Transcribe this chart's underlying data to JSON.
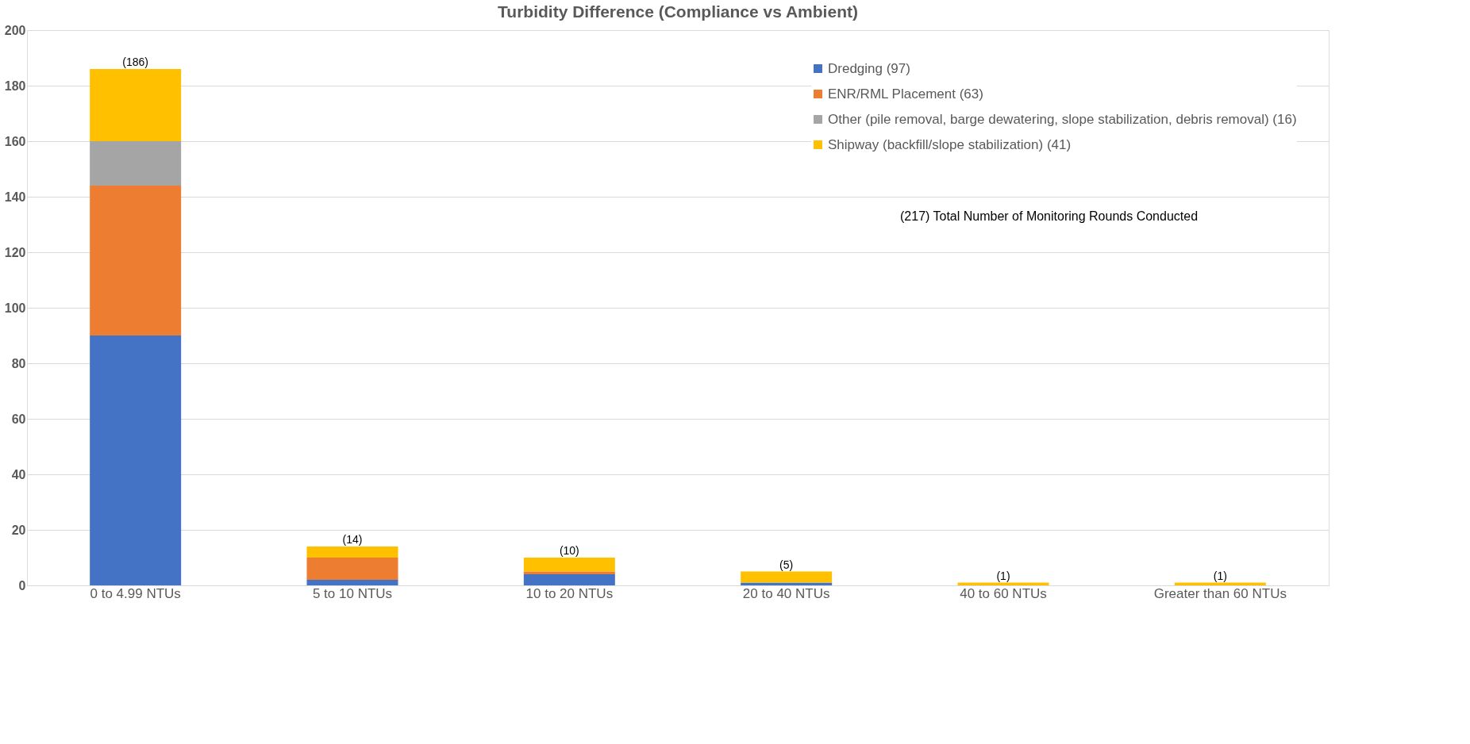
{
  "chart_data": {
    "type": "bar",
    "title": "Turbidity Difference (Compliance vs Ambient)",
    "categories": [
      "0 to 4.99 NTUs",
      "5 to 10 NTUs",
      "10 to 20 NTUs",
      "20 to 40 NTUs",
      "40 to 60 NTUs",
      "Greater than 60 NTUs"
    ],
    "series": [
      {
        "name": "Dredging (97)",
        "color": "#4472c4",
        "values": [
          90,
          2,
          4,
          1,
          0,
          0
        ]
      },
      {
        "name": "ENR/RML Placement (63)",
        "color": "#ed7d31",
        "values": [
          54,
          8,
          1,
          0,
          0,
          0
        ]
      },
      {
        "name": "Other (pile removal, barge dewatering, slope stabilization, debris removal) (16)",
        "color": "#a5a5a5",
        "values": [
          16,
          0,
          0,
          0,
          0,
          0
        ]
      },
      {
        "name": "Shipway (backfill/slope stabilization) (41)",
        "color": "#ffc000",
        "values": [
          26,
          4,
          5,
          4,
          1,
          1
        ]
      }
    ],
    "stacked": true,
    "totals": [
      "(186)",
      "(14)",
      "(10)",
      "(5)",
      "(1)",
      "(1)"
    ],
    "ylim": [
      0,
      200
    ],
    "yticks": [
      0,
      20,
      40,
      60,
      80,
      100,
      120,
      140,
      160,
      180,
      200
    ],
    "grid": "y",
    "legend": "top right",
    "annotations": [
      "(217)  Total Number of Monitoring Rounds Conducted"
    ]
  }
}
